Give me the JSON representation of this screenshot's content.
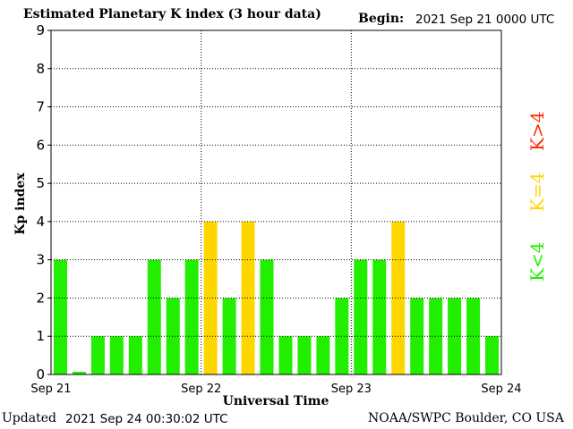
{
  "header": {
    "title": "Estimated Planetary K index (3 hour data)",
    "begin_label": "Begin:",
    "begin_value": "2021 Sep 21 0000 UTC"
  },
  "footer": {
    "updated_label": "Updated",
    "updated_value": "2021 Sep 24 00:30:02 UTC",
    "credit": "NOAA/SWPC Boulder, CO USA"
  },
  "legend": {
    "low": "K<4",
    "mid": "K=4",
    "high": "K>4"
  },
  "colors": {
    "low": "#22ee00",
    "mid": "#ffd700",
    "high": "#ff2a00",
    "frame": "#000000",
    "grid": "#000000"
  },
  "chart_data": {
    "type": "bar",
    "title": "Estimated Planetary K index (3 hour data)",
    "xlabel": "Universal Time",
    "ylabel": "Kp index",
    "ylim": [
      0,
      9
    ],
    "yticks": [
      "0",
      "1",
      "2",
      "3",
      "4",
      "5",
      "6",
      "7",
      "8",
      "9"
    ],
    "xticks": [
      "Sep 21",
      "Sep 22",
      "Sep 23",
      "Sep 24"
    ],
    "grid": true,
    "values": [
      3,
      0.07,
      1,
      1,
      1,
      3,
      2,
      3,
      4,
      2,
      4,
      3,
      1,
      1,
      1,
      2,
      3,
      3,
      4,
      2,
      2,
      2,
      2,
      1
    ]
  }
}
